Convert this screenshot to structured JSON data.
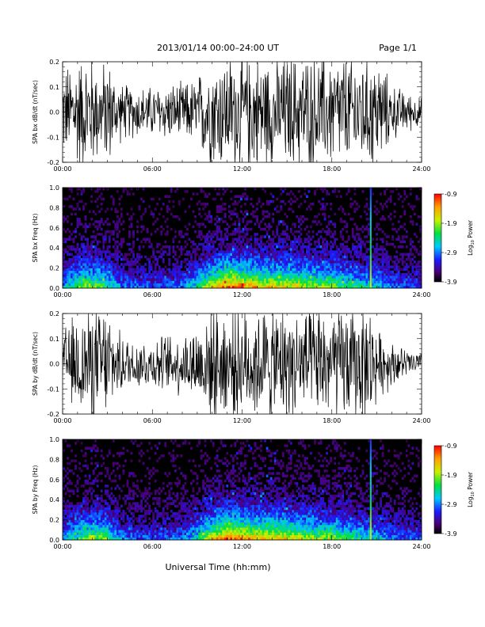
{
  "header": {
    "title": "2013/01/14  00:00–24:00 UT",
    "page": "Page 1/1"
  },
  "xlabel": "Universal Time (hh:mm)",
  "colorbar_label_prefix": "Log",
  "colorbar_label_sub": "10",
  "colorbar_label_suffix": " Power",
  "chart_data": [
    {
      "type": "line",
      "ylabel": "SPA bx dB/dt (nT/sec)",
      "xlim": [
        0,
        24
      ],
      "ylim": [
        -0.2,
        0.2
      ],
      "xticks": [
        "00:00",
        "06:00",
        "12:00",
        "18:00",
        "24:00"
      ],
      "yticks": [
        "-0.2",
        "-0.1",
        "0.0",
        "0.1",
        "0.2"
      ],
      "envelope_hours": [
        0,
        1,
        1.5,
        2,
        2.5,
        3,
        3.5,
        4,
        5,
        6,
        7,
        8,
        9,
        9.5,
        10,
        10.5,
        11,
        12,
        13,
        14,
        15,
        16,
        17,
        17.5,
        18,
        18.5,
        19,
        19.5,
        20,
        20.7,
        21,
        22,
        23,
        24
      ],
      "envelope_amplitude": [
        0.15,
        0.2,
        0.2,
        0.2,
        0.15,
        0.2,
        0.12,
        0.1,
        0.09,
        0.09,
        0.1,
        0.1,
        0.12,
        0.17,
        0.2,
        0.2,
        0.2,
        0.2,
        0.2,
        0.2,
        0.2,
        0.2,
        0.2,
        0.2,
        0.2,
        0.2,
        0.2,
        0.2,
        0.2,
        0.2,
        0.2,
        0.1,
        0.07,
        0.05
      ]
    },
    {
      "type": "heatmap",
      "ylabel": "SPA bx Freq (Hz)",
      "xlim": [
        0,
        24
      ],
      "ylim": [
        0,
        1.0
      ],
      "xticks": [
        "00:00",
        "06:00",
        "12:00",
        "18:00",
        "24:00"
      ],
      "yticks": [
        "0.0",
        "0.2",
        "0.4",
        "0.6",
        "0.8",
        "1.0"
      ],
      "colorbar": {
        "range": [
          -3.9,
          -0.9
        ],
        "ticks": [
          "-0.9",
          "-1.9",
          "-2.9",
          "-3.9"
        ]
      },
      "activity_hours": [
        0,
        1,
        2,
        3,
        4,
        6,
        8,
        9,
        10,
        11,
        12,
        13,
        14,
        15,
        16,
        17,
        18,
        19,
        20,
        21,
        22,
        24
      ],
      "activity_level": [
        0.35,
        0.55,
        0.6,
        0.5,
        0.3,
        0.25,
        0.3,
        0.45,
        0.7,
        0.85,
        0.8,
        0.75,
        0.7,
        0.7,
        0.65,
        0.6,
        0.6,
        0.5,
        0.45,
        0.4,
        0.3,
        0.25
      ],
      "spike_hour": 20.6
    },
    {
      "type": "line",
      "ylabel": "SPA by dB/dt (nT/sec)",
      "xlim": [
        0,
        24
      ],
      "ylim": [
        -0.2,
        0.2
      ],
      "xticks": [
        "00:00",
        "06:00",
        "12:00",
        "18:00",
        "24:00"
      ],
      "yticks": [
        "-0.2",
        "-0.1",
        "0.0",
        "0.1",
        "0.2"
      ],
      "envelope_hours": [
        0,
        1,
        2,
        2.5,
        3,
        3.5,
        4,
        5,
        6,
        7,
        8,
        9,
        9.5,
        10,
        11,
        12,
        13,
        14,
        15,
        16,
        17,
        18,
        19,
        20,
        20.7,
        21,
        22,
        23,
        24
      ],
      "envelope_amplitude": [
        0.12,
        0.18,
        0.2,
        0.2,
        0.2,
        0.12,
        0.1,
        0.09,
        0.09,
        0.1,
        0.11,
        0.14,
        0.18,
        0.2,
        0.2,
        0.2,
        0.2,
        0.2,
        0.2,
        0.2,
        0.2,
        0.2,
        0.2,
        0.2,
        0.2,
        0.12,
        0.08,
        0.05,
        0.04
      ]
    },
    {
      "type": "heatmap",
      "ylabel": "SPA by Freq (Hz)",
      "xlim": [
        0,
        24
      ],
      "ylim": [
        0,
        1.0
      ],
      "xticks": [
        "00:00",
        "06:00",
        "12:00",
        "18:00",
        "24:00"
      ],
      "yticks": [
        "0.0",
        "0.2",
        "0.4",
        "0.6",
        "0.8",
        "1.0"
      ],
      "colorbar": {
        "range": [
          -3.9,
          -0.9
        ],
        "ticks": [
          "-0.9",
          "-1.9",
          "-2.9",
          "-3.9"
        ]
      },
      "activity_hours": [
        0,
        1,
        2,
        3,
        4,
        6,
        8,
        9,
        10,
        11,
        12,
        13,
        14,
        15,
        16,
        17,
        18,
        19,
        20,
        21,
        22,
        24
      ],
      "activity_level": [
        0.35,
        0.5,
        0.6,
        0.55,
        0.3,
        0.25,
        0.3,
        0.45,
        0.7,
        0.85,
        0.8,
        0.75,
        0.75,
        0.7,
        0.65,
        0.6,
        0.6,
        0.5,
        0.45,
        0.4,
        0.3,
        0.25
      ],
      "spike_hour": 20.6
    }
  ]
}
